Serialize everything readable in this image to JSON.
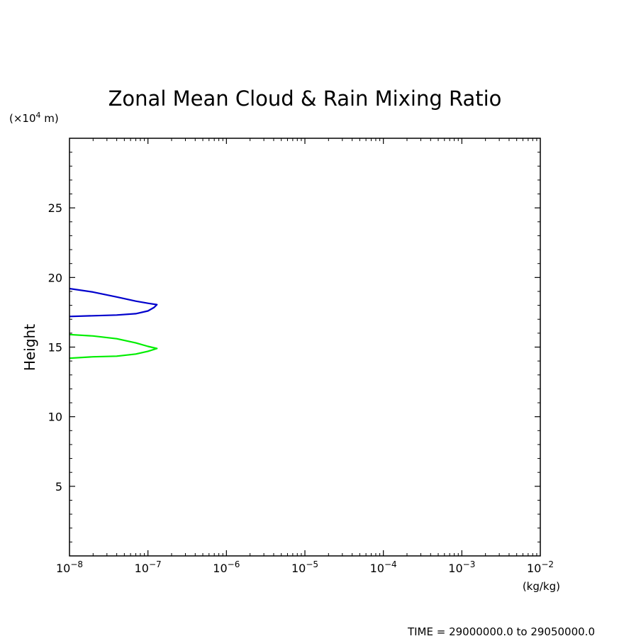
{
  "chart_data": {
    "type": "line",
    "title": "Zonal Mean Cloud & Rain Mixing Ratio",
    "ylabel": "Height",
    "y_unit_prefix": "(×10",
    "y_unit_exp": "4",
    "y_unit_suffix": " m)",
    "xlabel": "(kg/kg)",
    "x_scale": "log",
    "xlim": [
      1e-08,
      0.01
    ],
    "ylim": [
      0,
      30
    ],
    "x_ticks": [
      {
        "base": "10",
        "exp": "−8"
      },
      {
        "base": "10",
        "exp": "−7"
      },
      {
        "base": "10",
        "exp": "−6"
      },
      {
        "base": "10",
        "exp": "−5"
      },
      {
        "base": "10",
        "exp": "−4"
      },
      {
        "base": "10",
        "exp": "−3"
      },
      {
        "base": "10",
        "exp": "−2"
      }
    ],
    "y_ticks": [
      {
        "value": 5,
        "label": "5"
      },
      {
        "value": 10,
        "label": "10"
      },
      {
        "value": 15,
        "label": "15"
      },
      {
        "value": 20,
        "label": "20"
      },
      {
        "value": 25,
        "label": "25"
      }
    ],
    "grid": false,
    "series": [
      {
        "color": "#0000cc",
        "points": [
          [
            1e-08,
            19.2
          ],
          [
            2e-08,
            18.95
          ],
          [
            4e-08,
            18.6
          ],
          [
            7e-08,
            18.3
          ],
          [
            1e-07,
            18.15
          ],
          [
            1.3e-07,
            18.05
          ],
          [
            1.2e-07,
            17.85
          ],
          [
            1e-07,
            17.6
          ],
          [
            7e-08,
            17.4
          ],
          [
            4e-08,
            17.3
          ],
          [
            2e-08,
            17.25
          ],
          [
            1e-08,
            17.2
          ]
        ]
      },
      {
        "color": "#00ee00",
        "points": [
          [
            1e-08,
            15.9
          ],
          [
            2e-08,
            15.8
          ],
          [
            4e-08,
            15.6
          ],
          [
            7e-08,
            15.3
          ],
          [
            1e-07,
            15.05
          ],
          [
            1.3e-07,
            14.9
          ],
          [
            1e-07,
            14.7
          ],
          [
            7e-08,
            14.5
          ],
          [
            4e-08,
            14.35
          ],
          [
            2e-08,
            14.3
          ],
          [
            1e-08,
            14.2
          ]
        ]
      }
    ]
  },
  "footer": {
    "time_label": "TIME = 29000000.0 to 29050000.0"
  }
}
